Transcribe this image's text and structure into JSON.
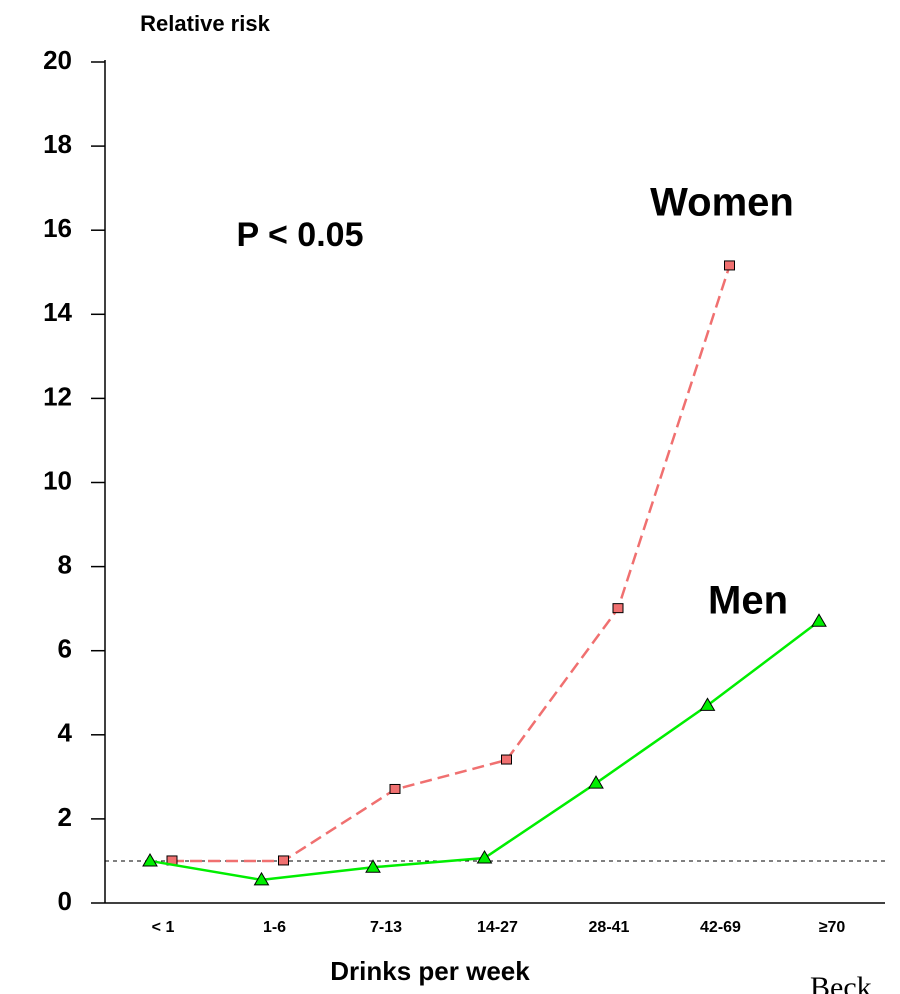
{
  "chart_data": {
    "type": "line",
    "y_label": "Relative risk",
    "x_label": "Drinks per week",
    "categories": [
      "< 1",
      "1-6",
      "7-13",
      "14-27",
      "28-41",
      "42-69",
      "≥70"
    ],
    "series": [
      {
        "name": "Women",
        "color": "#f07070",
        "marker": "square",
        "dashed": true,
        "values": [
          1.0,
          1.0,
          2.7,
          3.4,
          7.0,
          15.15,
          null
        ]
      },
      {
        "name": "Men",
        "color": "#00ee00",
        "marker": "triangle",
        "dashed": false,
        "values": [
          1.0,
          0.55,
          0.85,
          1.07,
          2.85,
          4.7,
          6.7
        ]
      }
    ],
    "annotation": "P < 0.05",
    "reference_line": 1,
    "source": "Beck",
    "ylim": [
      0,
      20
    ],
    "yticks": [
      0,
      2,
      4,
      6,
      8,
      10,
      12,
      14,
      16,
      18,
      20
    ]
  }
}
